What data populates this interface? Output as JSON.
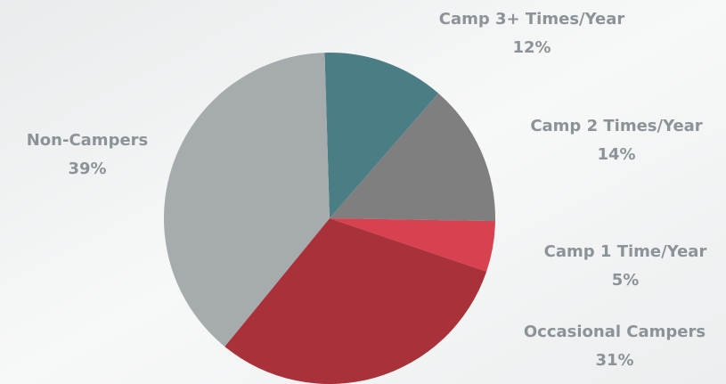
{
  "chart_data": {
    "type": "pie",
    "categories": [
      "Camp 3+ Times/Year",
      "Camp 2 Times/Year",
      "Camp 1 Time/Year",
      "Occasional Campers",
      "Non-Campers"
    ],
    "values": [
      12,
      14,
      5,
      31,
      39
    ],
    "value_labels": [
      "12%",
      "14%",
      "5%",
      "31%",
      "39%"
    ],
    "colors": [
      "#4a7e84",
      "#7f7f7f",
      "#d8414f",
      "#a9323a",
      "#a6abad"
    ]
  }
}
